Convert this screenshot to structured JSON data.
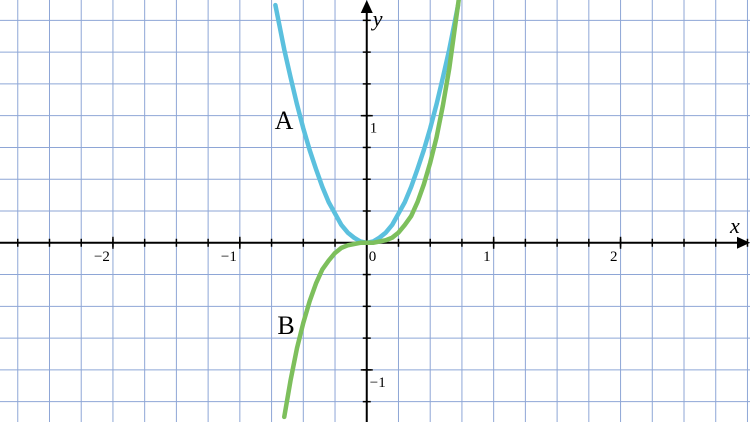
{
  "chart_data": {
    "type": "line",
    "x_label": "x",
    "y_label": "y",
    "xlim": [
      -2.89,
      3.02
    ],
    "ylim": [
      -1.41,
      1.91
    ],
    "xticks": [
      {
        "value": -2,
        "label": "−2"
      },
      {
        "value": -1,
        "label": "−1"
      },
      0,
      1,
      2
    ],
    "yticks": [
      1,
      {
        "value": -1,
        "label": "−1"
      }
    ],
    "grid": true,
    "grid_step": 0.25,
    "grid_color": "#8ea6d6",
    "series": [
      {
        "name": "A",
        "color": "#5bc0de",
        "x": [
          -0.72,
          -0.65,
          -0.6,
          -0.55,
          -0.5,
          -0.45,
          -0.4,
          -0.35,
          -0.3,
          -0.25,
          -0.2,
          -0.15,
          -0.1,
          -0.05,
          0,
          0.05,
          0.1,
          0.15,
          0.2,
          0.25,
          0.3,
          0.35,
          0.4,
          0.45,
          0.5,
          0.55,
          0.6,
          0.65,
          0.72
        ],
        "values": [
          1.87,
          1.52,
          1.3,
          1.09,
          0.9,
          0.73,
          0.58,
          0.44,
          0.32,
          0.23,
          0.14,
          0.08,
          0.04,
          0.01,
          0,
          0.01,
          0.04,
          0.08,
          0.14,
          0.23,
          0.32,
          0.44,
          0.58,
          0.73,
          0.9,
          1.09,
          1.3,
          1.52,
          1.87
        ]
      },
      {
        "name": "B",
        "color": "#7dbf5c",
        "x": [
          -0.65,
          -0.6,
          -0.55,
          -0.5,
          -0.45,
          -0.4,
          -0.35,
          -0.3,
          -0.25,
          -0.2,
          -0.15,
          -0.1,
          -0.05,
          0,
          0.05,
          0.1,
          0.15,
          0.2,
          0.25,
          0.3,
          0.35,
          0.4,
          0.45,
          0.5,
          0.55,
          0.6,
          0.65,
          0.73
        ],
        "values": [
          -1.37,
          -1.08,
          -0.83,
          -0.63,
          -0.46,
          -0.32,
          -0.21,
          -0.14,
          -0.08,
          -0.04,
          -0.02,
          -0.01,
          0,
          0,
          0,
          0.01,
          0.02,
          0.04,
          0.08,
          0.14,
          0.21,
          0.32,
          0.46,
          0.63,
          0.83,
          1.08,
          1.37,
          1.95
        ]
      }
    ]
  }
}
